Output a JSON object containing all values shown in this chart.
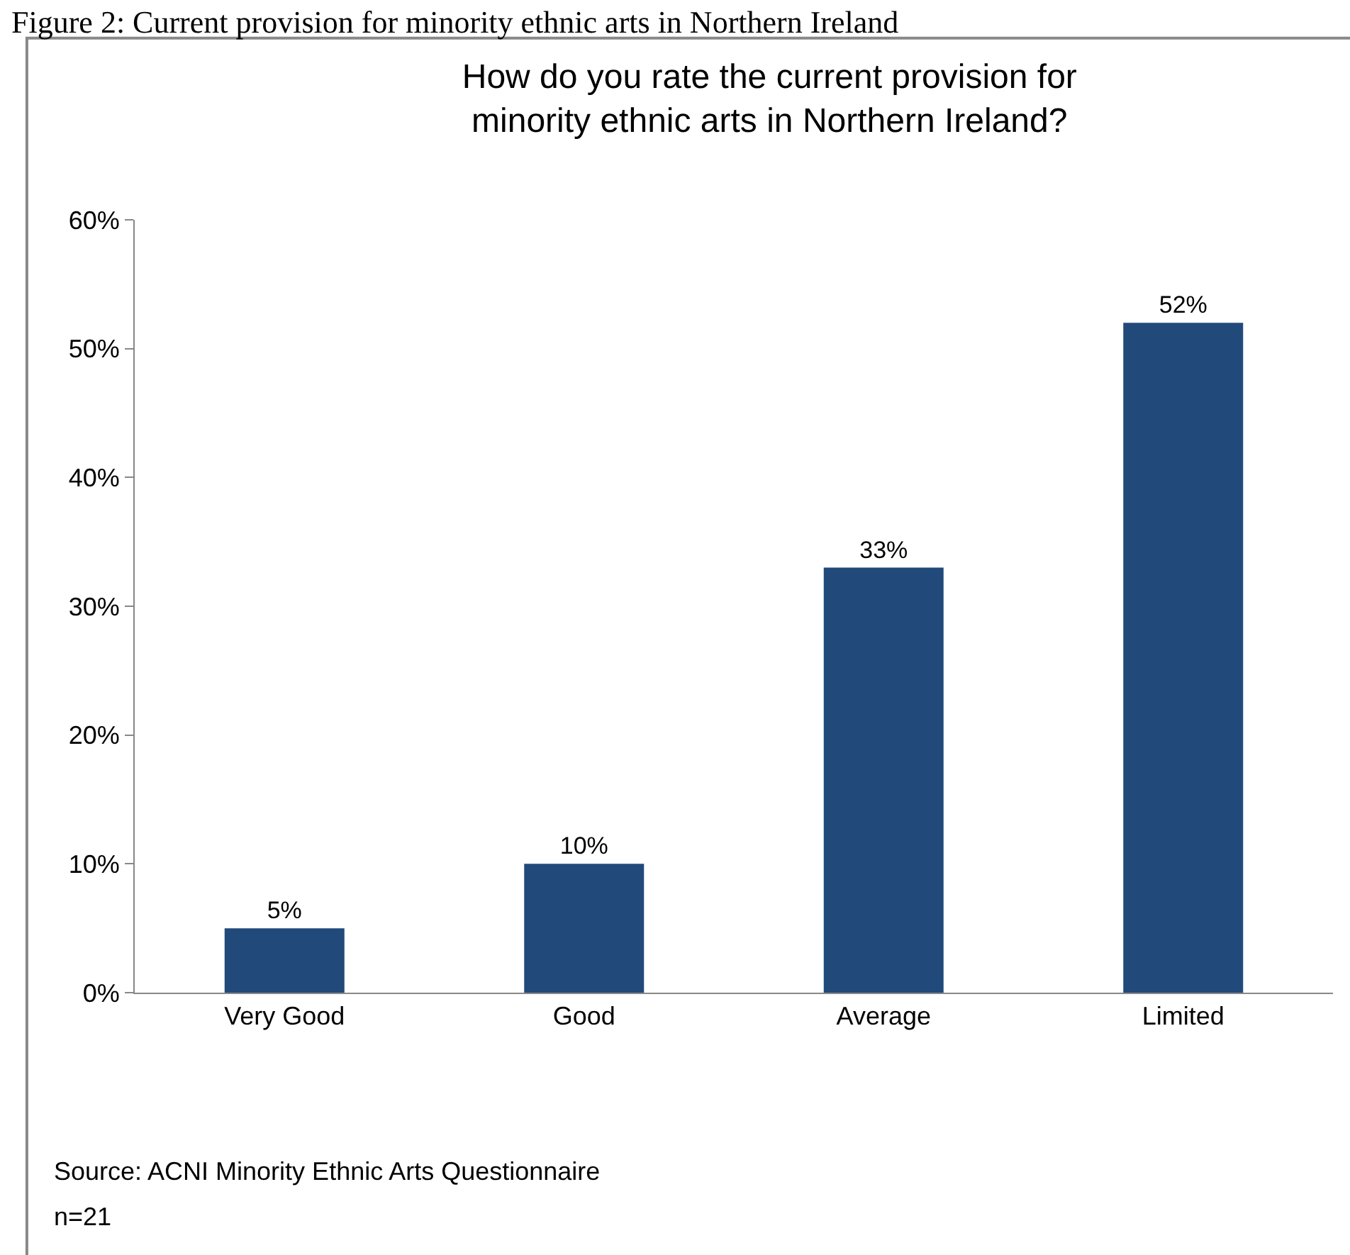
{
  "chart_data": {
    "type": "bar",
    "title": "How do you rate the current provision for minority ethnic arts in Northern Ireland?",
    "categories": [
      "Very Good",
      "Good",
      "Average",
      "Limited"
    ],
    "values": [
      5,
      10,
      33,
      52
    ],
    "color": "#214a7b",
    "value_labels": [
      "5%",
      "10%",
      "33%",
      "52%"
    ],
    "ylim": [
      0,
      60
    ],
    "yticks": [
      {
        "value": 0,
        "label": "0%"
      },
      {
        "value": 10,
        "label": "10%"
      },
      {
        "value": 20,
        "label": "20%"
      },
      {
        "value": 30,
        "label": "30%"
      },
      {
        "value": 40,
        "label": "40%"
      },
      {
        "value": 50,
        "label": "50%"
      },
      {
        "value": 60,
        "label": "60%"
      }
    ],
    "grid": false,
    "annotations": [
      "Figure 2: Current provision for minority ethnic arts in Northern Ireland",
      "Source: ACNI Minority Ethnic Arts Questionnaire",
      "n=21"
    ]
  }
}
